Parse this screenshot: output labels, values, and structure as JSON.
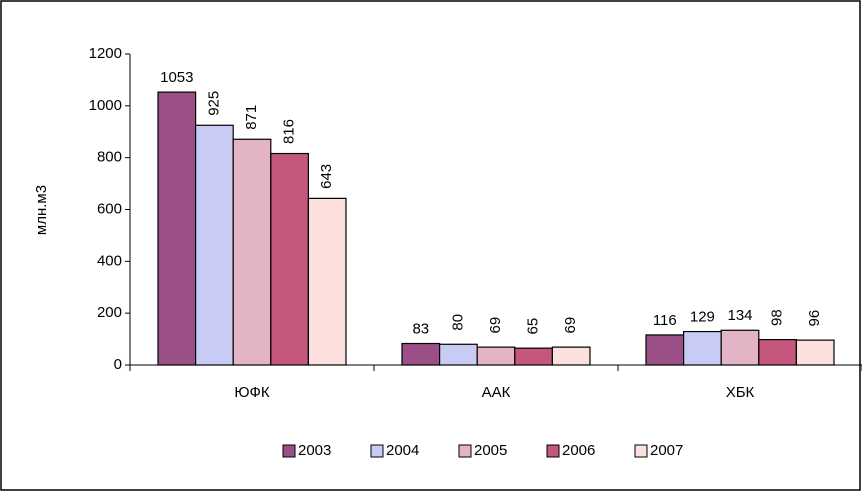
{
  "chart_data": {
    "type": "bar",
    "y_label": "млн.м3",
    "categories": [
      "ЮФК",
      "ААК",
      "ХБК"
    ],
    "series": [
      {
        "name": "2003",
        "color": "#9c4f86",
        "values": [
          1053,
          83,
          116
        ]
      },
      {
        "name": "2004",
        "color": "#c8ccf4",
        "values": [
          925,
          80,
          129
        ]
      },
      {
        "name": "2005",
        "color": "#e2b4c6",
        "values": [
          871,
          69,
          134
        ]
      },
      {
        "name": "2006",
        "color": "#c4577e",
        "values": [
          816,
          65,
          98
        ]
      },
      {
        "name": "2007",
        "color": "#fbe0de",
        "values": [
          643,
          69,
          96
        ]
      }
    ],
    "ylim": [
      0,
      1200
    ],
    "yticks": [
      0,
      200,
      400,
      600,
      800,
      1000,
      1200
    ],
    "legend": "bottom"
  }
}
